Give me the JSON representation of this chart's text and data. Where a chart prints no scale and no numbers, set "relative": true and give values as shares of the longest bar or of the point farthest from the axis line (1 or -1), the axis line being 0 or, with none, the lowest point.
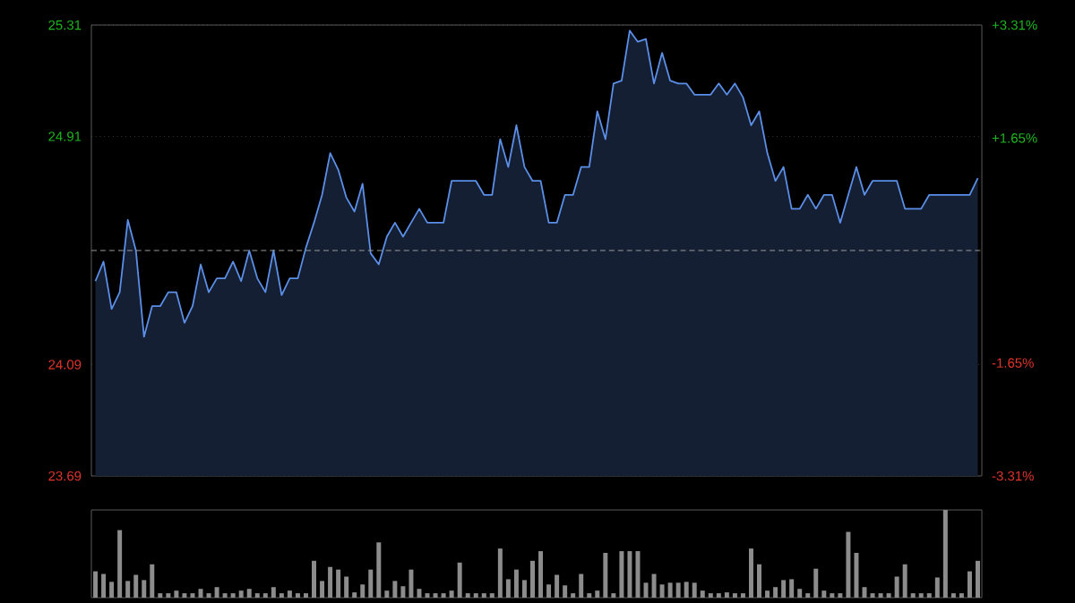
{
  "chart_data": [
    {
      "type": "area",
      "categories": [
        null,
        null,
        null,
        null,
        null,
        null,
        null,
        null,
        null,
        null,
        null,
        null,
        null,
        null,
        null,
        null,
        null,
        null,
        null,
        null,
        null,
        null,
        null,
        null,
        null,
        null,
        null,
        null,
        null,
        null,
        null,
        null,
        null,
        null,
        null,
        null,
        null,
        null,
        null,
        null,
        null,
        null,
        null,
        null,
        null,
        null,
        null,
        null,
        null,
        null,
        null,
        null,
        null,
        null,
        null,
        null,
        null,
        null,
        null,
        null,
        null,
        null,
        null,
        null,
        null,
        null,
        null,
        null,
        null,
        null,
        null,
        null,
        null,
        null,
        null,
        null,
        null,
        null,
        null,
        null,
        null,
        null,
        null,
        null,
        null,
        null,
        null,
        null,
        null,
        null,
        null,
        null,
        null,
        null,
        null,
        null,
        null,
        null,
        null,
        null,
        null,
        null,
        null,
        null,
        null,
        null,
        null,
        null,
        null,
        null
      ],
      "ylim": [
        23.69,
        25.31
      ],
      "yticks": [
        {
          "value": 23.69,
          "label": "23.69"
        },
        {
          "value": 24.09,
          "label": "24.09"
        },
        {
          "value": 24.91,
          "label": "24.91"
        },
        {
          "value": 25.31,
          "label": "25.31"
        }
      ],
      "y2lim": [
        -3.31,
        3.31
      ],
      "y2ticks": [
        {
          "value": -3.31,
          "label": "-3.31%"
        },
        {
          "value": -1.65,
          "label": "-1.65%"
        },
        {
          "value": 1.65,
          "label": "+1.65%"
        },
        {
          "value": 3.31,
          "label": "+3.31%"
        }
      ],
      "grid": "y",
      "tick_labels": "y",
      "ref_lines": [
        {
          "axis": "y",
          "value": 24.5,
          "color": "#9a9a9a",
          "line_style": "dashed"
        }
      ],
      "series": [
        {
          "color": "#5b8fe8",
          "values": [
            24.39,
            24.46,
            24.29,
            24.35,
            24.61,
            24.5,
            24.19,
            24.3,
            24.3,
            24.35,
            24.35,
            24.24,
            24.3,
            24.45,
            24.35,
            24.4,
            24.4,
            24.46,
            24.39,
            24.5,
            24.4,
            24.35,
            24.5,
            24.34,
            24.4,
            24.4,
            24.51,
            24.6,
            24.7,
            24.85,
            24.79,
            24.69,
            24.64,
            24.74,
            24.49,
            24.45,
            24.55,
            24.6,
            24.55,
            24.6,
            24.65,
            24.6,
            24.6,
            24.6,
            24.75,
            24.75,
            24.75,
            24.75,
            24.7,
            24.7,
            24.9,
            24.8,
            24.95,
            24.8,
            24.75,
            24.75,
            24.6,
            24.6,
            24.7,
            24.7,
            24.8,
            24.8,
            25.0,
            24.9,
            25.1,
            25.11,
            25.29,
            25.25,
            25.26,
            25.1,
            25.21,
            25.11,
            25.1,
            25.1,
            25.06,
            25.06,
            25.06,
            25.1,
            25.06,
            25.1,
            25.05,
            24.95,
            25.0,
            24.85,
            24.75,
            24.8,
            24.65,
            24.65,
            24.7,
            24.65,
            24.7,
            24.7,
            24.6,
            24.7,
            24.8,
            24.7,
            24.75,
            24.75,
            24.75,
            24.75,
            24.65,
            24.65,
            24.65,
            24.7,
            24.7,
            24.7,
            24.7,
            24.7,
            24.7,
            24.76
          ]
        }
      ]
    },
    {
      "type": "bar",
      "relative": true,
      "tick_labels": false,
      "categories": [
        null,
        null,
        null,
        null,
        null,
        null,
        null,
        null,
        null,
        null,
        null,
        null,
        null,
        null,
        null,
        null,
        null,
        null,
        null,
        null,
        null,
        null,
        null,
        null,
        null,
        null,
        null,
        null,
        null,
        null,
        null,
        null,
        null,
        null,
        null,
        null,
        null,
        null,
        null,
        null,
        null,
        null,
        null,
        null,
        null,
        null,
        null,
        null,
        null,
        null,
        null,
        null,
        null,
        null,
        null,
        null,
        null,
        null,
        null,
        null,
        null,
        null,
        null,
        null,
        null,
        null,
        null,
        null,
        null,
        null,
        null,
        null,
        null,
        null,
        null,
        null,
        null,
        null,
        null,
        null,
        null,
        null,
        null,
        null,
        null,
        null,
        null,
        null,
        null,
        null,
        null,
        null,
        null,
        null,
        null,
        null,
        null,
        null,
        null,
        null,
        null,
        null,
        null,
        null,
        null,
        null,
        null,
        null,
        null,
        null
      ],
      "series": [
        {
          "color": "#8c8c8c",
          "values": [
            0.3,
            0.27,
            0.18,
            0.77,
            0.19,
            0.26,
            0.2,
            0.38,
            0.05,
            0.05,
            0.08,
            0.05,
            0.05,
            0.1,
            0.05,
            0.12,
            0.05,
            0.05,
            0.08,
            0.1,
            0.05,
            0.05,
            0.12,
            0.05,
            0.08,
            0.05,
            0.05,
            0.42,
            0.19,
            0.35,
            0.32,
            0.24,
            0.06,
            0.15,
            0.32,
            0.63,
            0.08,
            0.19,
            0.13,
            0.32,
            0.1,
            0.05,
            0.05,
            0.05,
            0.08,
            0.4,
            0.05,
            0.05,
            0.05,
            0.05,
            0.56,
            0.21,
            0.32,
            0.2,
            0.42,
            0.53,
            0.15,
            0.26,
            0.14,
            0.05,
            0.27,
            0.05,
            0.08,
            0.51,
            0.05,
            0.53,
            0.53,
            0.53,
            0.17,
            0.27,
            0.15,
            0.17,
            0.17,
            0.18,
            0.17,
            0.08,
            0.05,
            0.05,
            0.06,
            0.05,
            0.05,
            0.56,
            0.38,
            0.08,
            0.12,
            0.2,
            0.21,
            0.1,
            0.05,
            0.33,
            0.08,
            0.05,
            0.05,
            0.75,
            0.51,
            0.12,
            0.05,
            0.05,
            0.05,
            0.24,
            0.38,
            0.05,
            0.05,
            0.05,
            0.23,
            1,
            0.05,
            0.05,
            0.3,
            0.42
          ]
        }
      ]
    }
  ]
}
